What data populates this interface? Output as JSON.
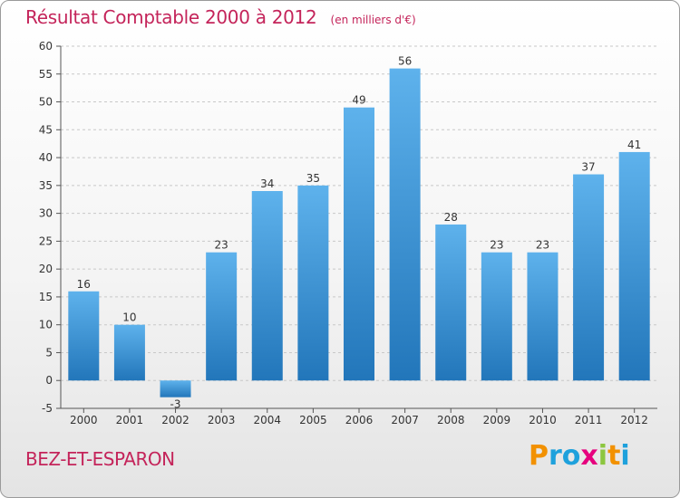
{
  "header": {
    "title": "Résultat Comptable 2000 à 2012",
    "subtitle": "(en milliers d'€)"
  },
  "footer": {
    "location": "BEZ-ET-ESPARON",
    "logo_text": "Proxiti"
  },
  "colors": {
    "title": "#c4245a",
    "bar_top": "#5eb2ec",
    "bar_bottom": "#2276ba",
    "logo": [
      "#f29100",
      "#1ea1dc",
      "#1ea1dc",
      "#e6007e",
      "#8cc63f",
      "#f29100",
      "#1ea1dc"
    ]
  },
  "chart_data": {
    "type": "bar",
    "title": "Résultat Comptable 2000 à 2012",
    "subtitle": "(en milliers d'€)",
    "categories": [
      "2000",
      "2001",
      "2002",
      "2003",
      "2004",
      "2005",
      "2006",
      "2007",
      "2008",
      "2009",
      "2010",
      "2011",
      "2012"
    ],
    "values": [
      16,
      10,
      -3,
      23,
      34,
      35,
      49,
      56,
      28,
      23,
      23,
      37,
      41
    ],
    "ylim": [
      -5,
      60
    ],
    "yticks": [
      -5,
      0,
      5,
      10,
      15,
      20,
      25,
      30,
      35,
      40,
      45,
      50,
      55,
      60
    ],
    "grid": true
  }
}
